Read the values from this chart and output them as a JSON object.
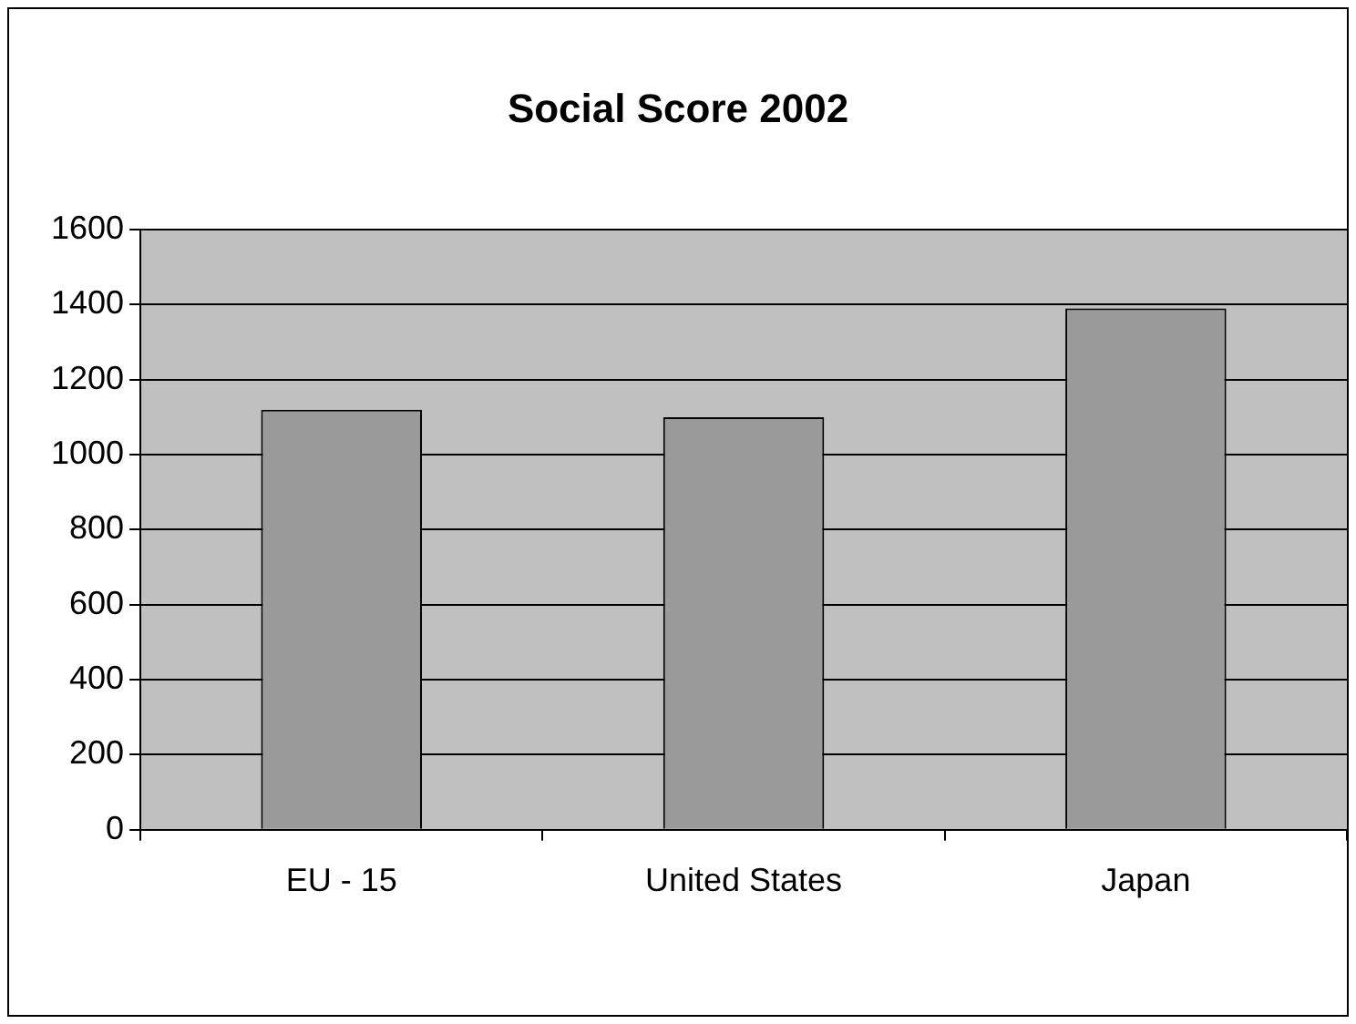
{
  "chart_data": {
    "type": "bar",
    "title": "Social Score 2002",
    "categories": [
      "EU - 15",
      "United States",
      "Japan"
    ],
    "values": [
      1120,
      1100,
      1390
    ],
    "color": "#9a9a9a",
    "ylim": [
      0,
      1600
    ],
    "yticks": [
      0,
      200,
      400,
      600,
      800,
      1000,
      1200,
      1400,
      1600
    ],
    "grid": "y"
  }
}
